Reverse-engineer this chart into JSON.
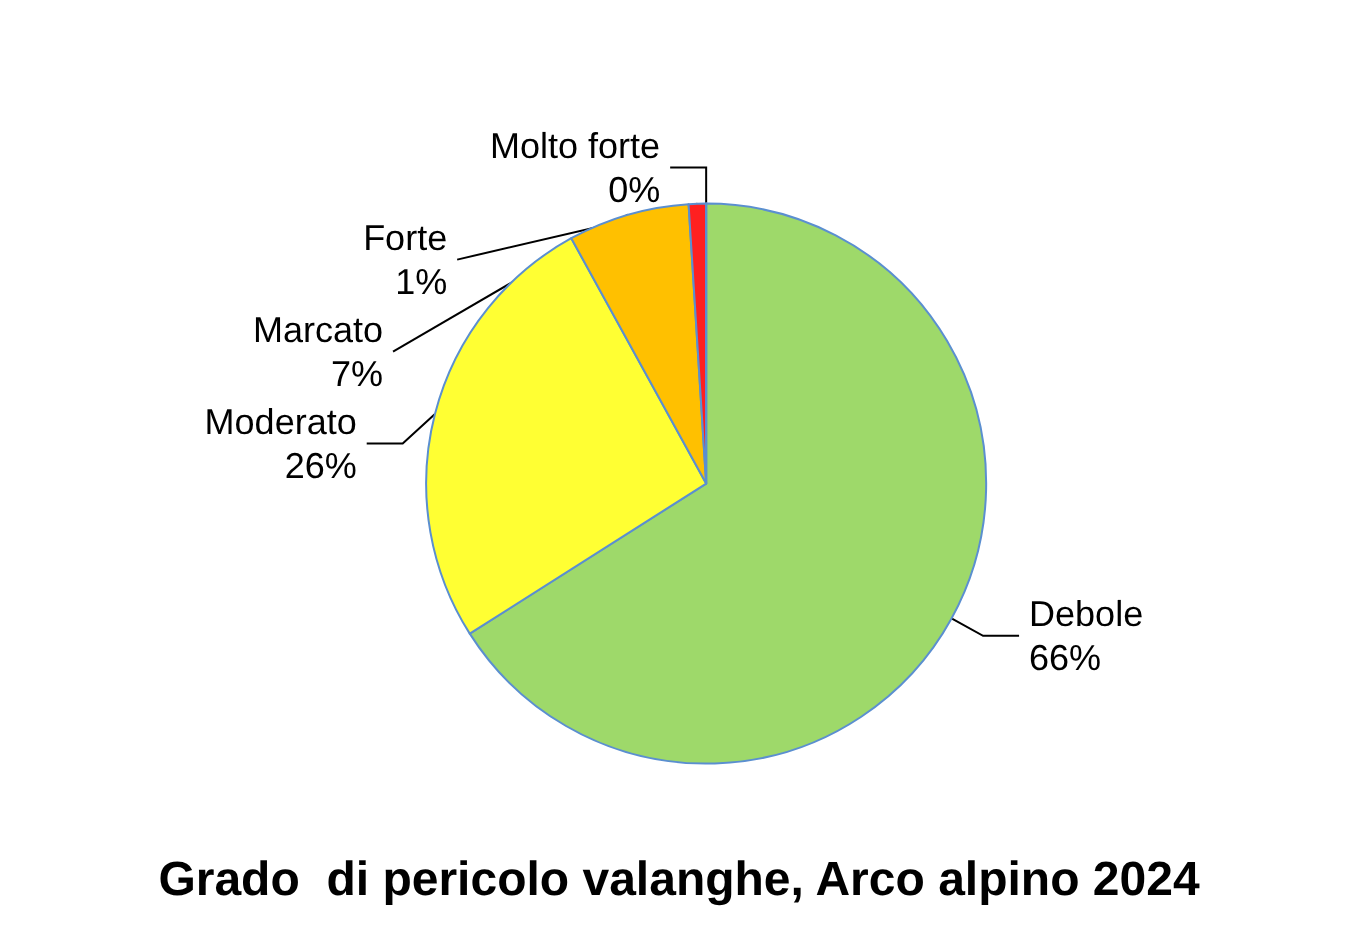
{
  "chart_data": {
    "type": "pie",
    "title": "Grado  di pericolo valanghe, Arco alpino 2024",
    "categories": [
      "Debole",
      "Moderato",
      "Marcato",
      "Forte",
      "Molto forte"
    ],
    "values": [
      66,
      26,
      7,
      1,
      0
    ],
    "value_labels": [
      "66%",
      "26%",
      "7%",
      "1%",
      "0%"
    ],
    "colors": [
      "#9ed96a",
      "#ffff33",
      "#ffc000",
      "#ff2020",
      "#c00000"
    ],
    "legend": false
  }
}
